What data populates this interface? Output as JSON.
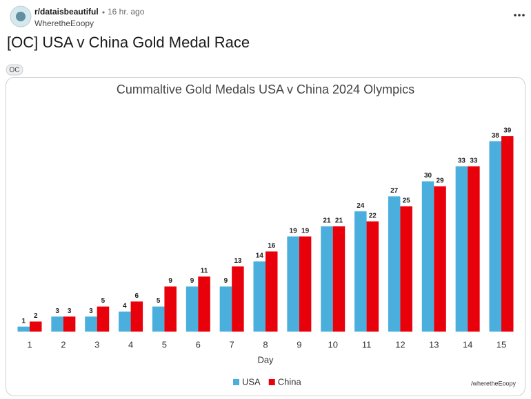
{
  "post": {
    "subreddit": "r/dataisbeautiful",
    "time": "16 hr. ago",
    "author": "WheretheEoopy",
    "title": "[OC] USA v China Gold Medal Race",
    "flair": "OC"
  },
  "chart_data": {
    "type": "bar",
    "title": "Cummaltive Gold Medals USA v China 2024 Olympics",
    "x_label": "Day",
    "categories": [
      1,
      2,
      3,
      4,
      5,
      6,
      7,
      8,
      9,
      10,
      11,
      12,
      13,
      14,
      15
    ],
    "series": [
      {
        "name": "USA",
        "color": "#4bafdd",
        "values": [
          1,
          3,
          3,
          4,
          5,
          9,
          9,
          14,
          19,
          21,
          24,
          27,
          30,
          33,
          38
        ]
      },
      {
        "name": "China",
        "color": "#e8000b",
        "values": [
          2,
          3,
          5,
          6,
          9,
          11,
          13,
          16,
          19,
          21,
          22,
          25,
          29,
          33,
          39
        ]
      }
    ],
    "legend": "bottom",
    "source": "/wheretheEoopy"
  }
}
